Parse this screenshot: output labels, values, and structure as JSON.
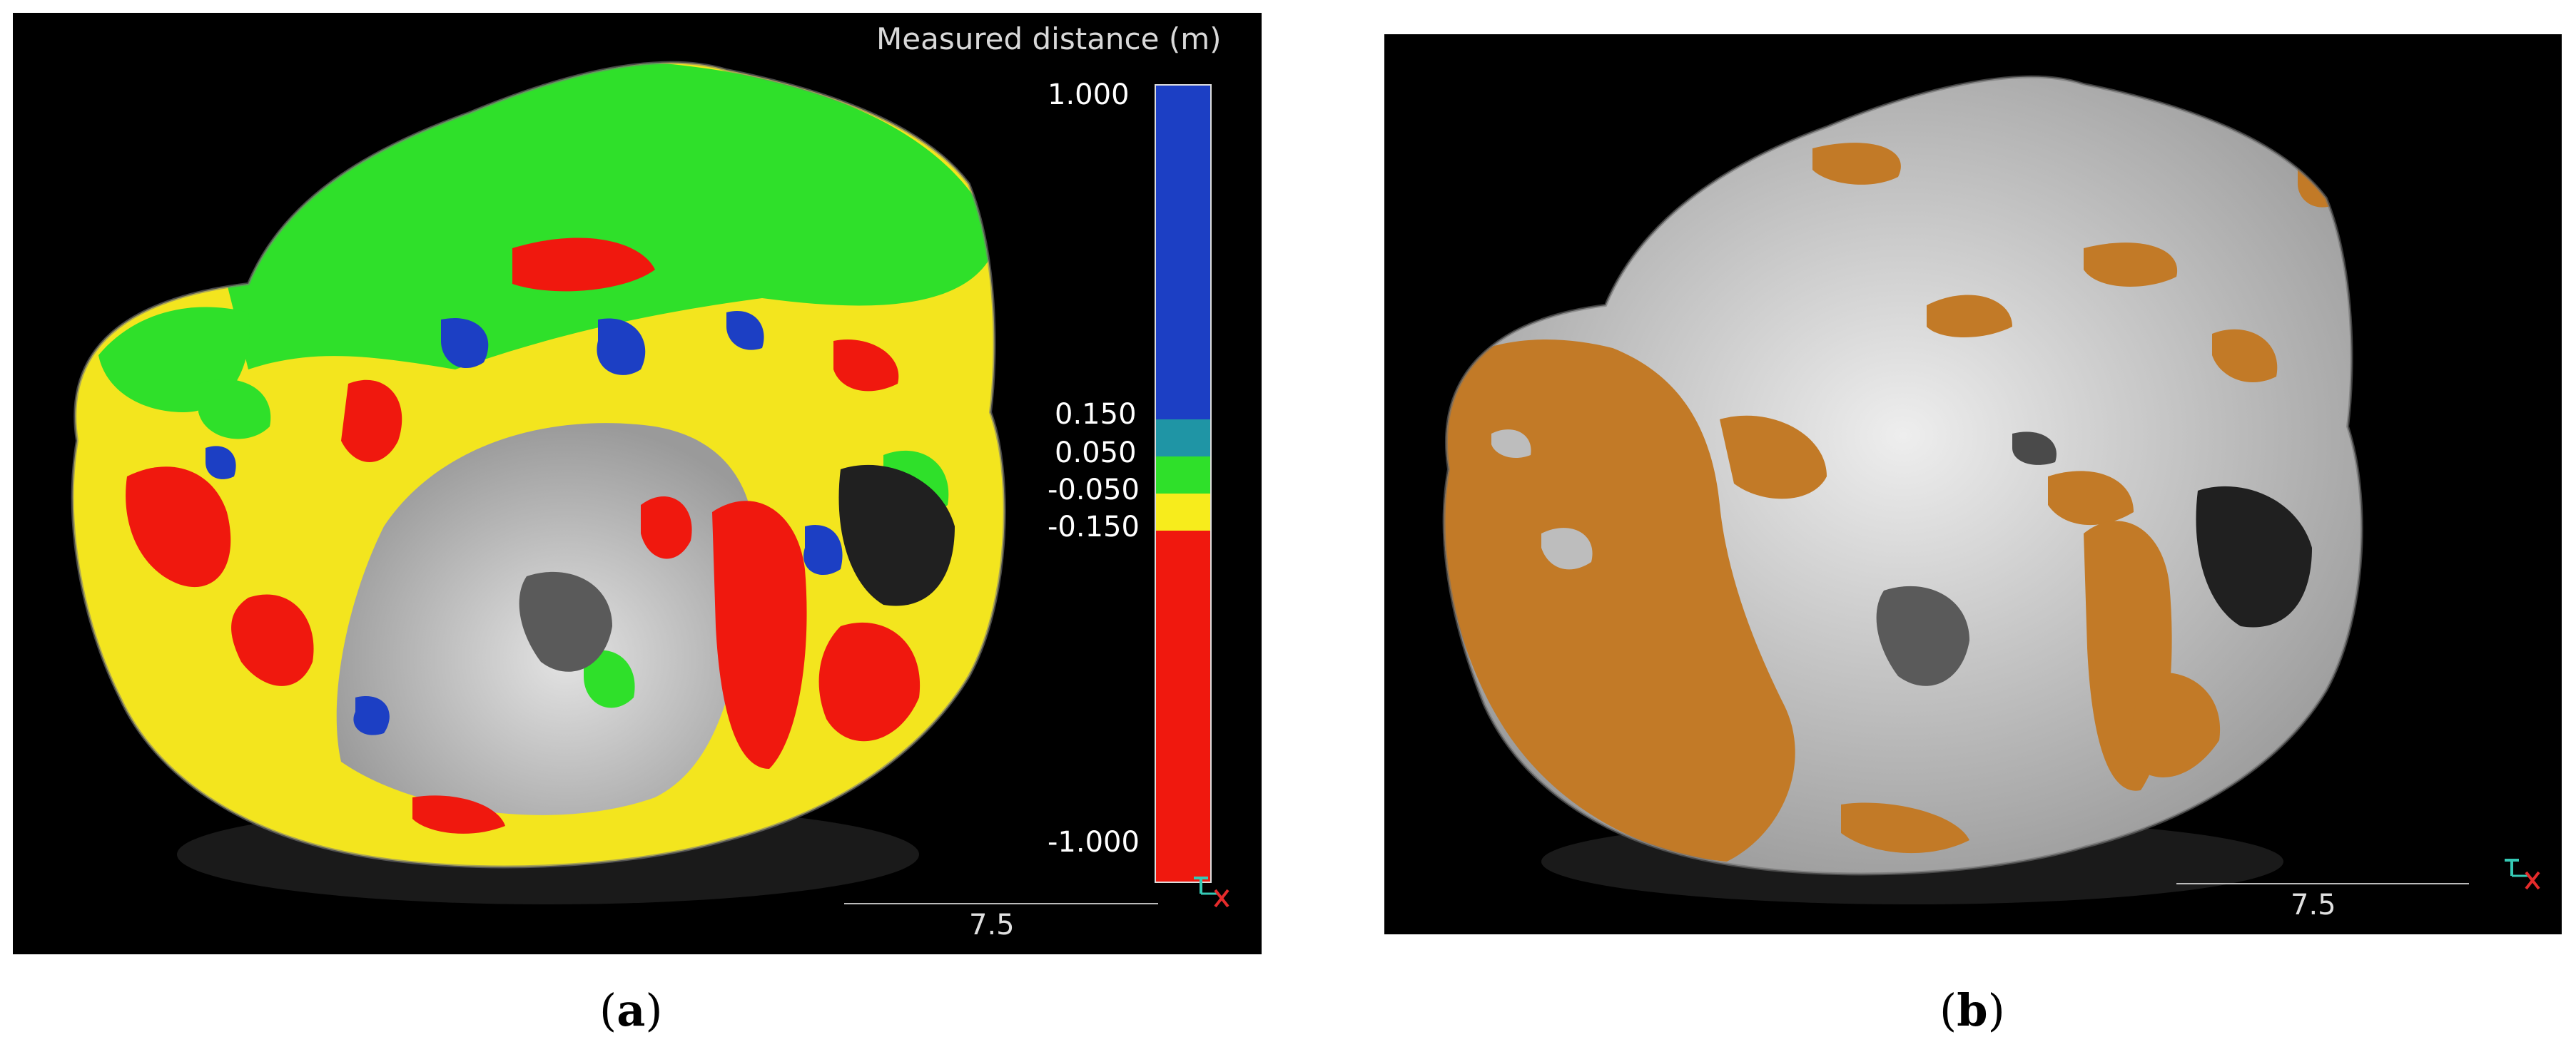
{
  "panel_a": {
    "legend_title": "Measured distance (m)",
    "ticks": [
      "1.000",
      "0.150",
      "0.050",
      "-0.050",
      "-0.150",
      "-1.000"
    ],
    "scale_value": "7.5",
    "caption_open": "(",
    "caption_letter": "a",
    "caption_close": ")"
  },
  "panel_b": {
    "scale_value": "7.5",
    "caption_open": "(",
    "caption_letter": "b",
    "caption_close": ")"
  },
  "colors": {
    "blue": "#1c3fc4",
    "teal": "#1f95a5",
    "green": "#2fe02a",
    "yellow": "#f7ec1c",
    "red": "#f0180e",
    "orange": "#c27a27",
    "gray": "#c9c9c9"
  },
  "icons": [
    "axes-icon"
  ]
}
